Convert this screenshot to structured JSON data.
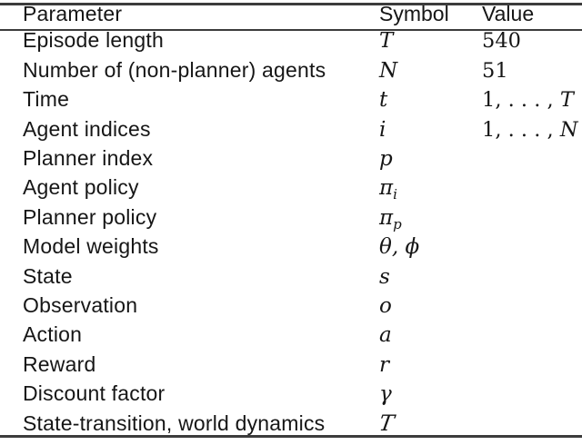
{
  "page": {
    "background_color": "#ffffff",
    "text_color": "#161616",
    "rule_color": "#3c3c3c"
  },
  "table": {
    "columns": [
      "Parameter",
      "Symbol",
      "Value"
    ],
    "rows": [
      {
        "parameter": "Episode length",
        "symbol": "T",
        "value": "540"
      },
      {
        "parameter": "Number of (non-planner) agents",
        "symbol": "N",
        "value": "51"
      },
      {
        "parameter": "Time",
        "symbol": "t",
        "value": "1, . . . , ",
        "value_it": "T"
      },
      {
        "parameter": "Agent indices",
        "symbol": "i",
        "value": "1, . . . , ",
        "value_it": "N"
      },
      {
        "parameter": "Planner index",
        "symbol": "p"
      },
      {
        "parameter": "Agent policy",
        "symbol": "π",
        "symbol_sub": "i"
      },
      {
        "parameter": "Planner policy",
        "symbol": "π",
        "symbol_sub": "p"
      },
      {
        "parameter": "Model weights",
        "symbol": "θ, ϕ"
      },
      {
        "parameter": "State",
        "symbol": "s"
      },
      {
        "parameter": "Observation",
        "symbol": "o"
      },
      {
        "parameter": "Action",
        "symbol": "a"
      },
      {
        "parameter": "Reward",
        "symbol": "r"
      },
      {
        "parameter": "Discount factor",
        "symbol": "γ"
      },
      {
        "parameter": "State-transition, world dynamics",
        "symbol": "T",
        "symbol_style": "calligraphic"
      }
    ]
  }
}
